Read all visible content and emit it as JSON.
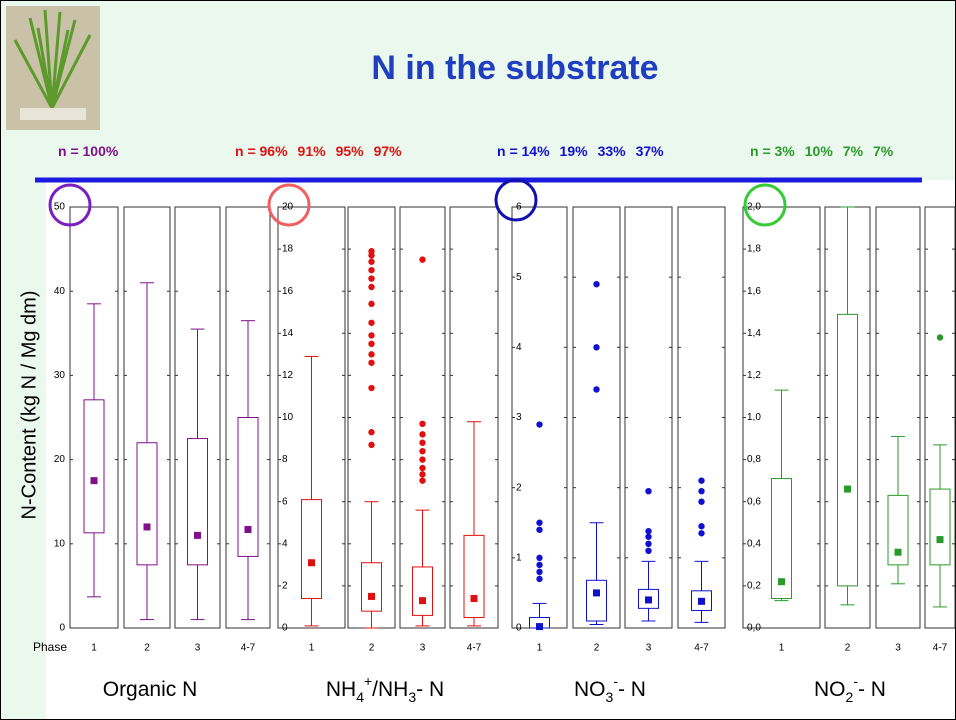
{
  "title": "N in the substrate",
  "y_axis_label": "N-Content (kg N / Mg dm)",
  "phase_label": "Phase",
  "chart_data": [
    {
      "type": "box",
      "name": [
        {
          "text": "Organic N"
        }
      ],
      "n_labels": [
        "n = 100%"
      ],
      "color": "#80108a",
      "categories": [
        "1",
        "2",
        "3",
        "4-7"
      ],
      "ylim": [
        0,
        50
      ],
      "yticks": [
        0,
        10,
        20,
        30,
        40,
        50
      ],
      "boxes": [
        {
          "min": 3.7,
          "q1": 11.3,
          "q3": 27.1,
          "max": 38.5,
          "mean": 17.5,
          "outliers": []
        },
        {
          "min": 1,
          "q1": 7.5,
          "q3": 22,
          "max": 41,
          "mean": 12,
          "outliers": []
        },
        {
          "min": 1,
          "q1": 7.5,
          "q3": 22.5,
          "max": 35.5,
          "mean": 11,
          "outliers": []
        },
        {
          "min": 1,
          "q1": 8.5,
          "q3": 25,
          "max": 36.5,
          "mean": 11.7,
          "outliers": []
        }
      ]
    },
    {
      "type": "box",
      "name": [
        {
          "text": "NH"
        },
        {
          "text": "4",
          "sub": true
        },
        {
          "text": "+",
          "sup": true
        },
        {
          "text": "/NH"
        },
        {
          "text": "3",
          "sub": true
        },
        {
          "text": "- N"
        }
      ],
      "n_labels": [
        "n = 96%",
        "91%",
        "95%",
        "97%"
      ],
      "color": "#e01010",
      "categories": [
        "1",
        "2",
        "3",
        "4-7"
      ],
      "ylim": [
        0,
        20
      ],
      "yticks": [
        0,
        2,
        4,
        6,
        8,
        10,
        12,
        14,
        16,
        18,
        20
      ],
      "boxes": [
        {
          "min": 0.1,
          "q1": 1.4,
          "q3": 6.1,
          "max": 12.9,
          "mean": 3.1,
          "outliers": []
        },
        {
          "min": 0,
          "q1": 0.8,
          "q3": 3.1,
          "max": 6,
          "mean": 1.5,
          "outliers": [
            17.9,
            17.7,
            17.4,
            17.0,
            16.6,
            16.2,
            15.4,
            14.5,
            13.9,
            13.5,
            13.0,
            12.6,
            11.4,
            9.3,
            8.7
          ]
        },
        {
          "min": 0.1,
          "q1": 0.6,
          "q3": 2.9,
          "max": 5.6,
          "mean": 1.3,
          "outliers": [
            17.5,
            9.7,
            9.2,
            8.8,
            8.4,
            8.0,
            7.6,
            7.3,
            7.0
          ]
        },
        {
          "min": 0.1,
          "q1": 0.5,
          "q3": 4.4,
          "max": 9.8,
          "mean": 1.4,
          "outliers": []
        }
      ]
    },
    {
      "type": "box",
      "name": [
        {
          "text": "NO"
        },
        {
          "text": "3",
          "sub": true
        },
        {
          "text": "-",
          "sup": true
        },
        {
          "text": "- N"
        }
      ],
      "n_labels": [
        "n = 14%",
        "19%",
        "33%",
        "37%"
      ],
      "color": "#1010d0",
      "categories": [
        "1",
        "2",
        "3",
        "4-7"
      ],
      "ylim": [
        0,
        6
      ],
      "yticks": [
        0,
        1,
        2,
        3,
        4,
        5,
        6
      ],
      "boxes": [
        {
          "min": 0,
          "q1": 0,
          "q3": 0.15,
          "max": 0.35,
          "mean": 0.02,
          "outliers": [
            2.9,
            1.5,
            1.4,
            1.0,
            0.9,
            0.8,
            0.7
          ]
        },
        {
          "min": 0.05,
          "q1": 0.1,
          "q3": 0.68,
          "max": 1.5,
          "mean": 0.5,
          "outliers": [
            4.9,
            4.0,
            3.4
          ]
        },
        {
          "min": 0.1,
          "q1": 0.28,
          "q3": 0.55,
          "max": 0.95,
          "mean": 0.4,
          "outliers": [
            1.95,
            1.38,
            1.3,
            1.2,
            1.1
          ]
        },
        {
          "min": 0.08,
          "q1": 0.25,
          "q3": 0.53,
          "max": 0.95,
          "mean": 0.38,
          "outliers": [
            2.1,
            1.95,
            1.8,
            1.45,
            1.35
          ]
        }
      ]
    },
    {
      "type": "box",
      "name": [
        {
          "text": "NO"
        },
        {
          "text": "2",
          "sub": true
        },
        {
          "text": "-",
          "sup": true
        },
        {
          "text": "- N"
        }
      ],
      "n_labels": [
        "n = 3%",
        "10%",
        "7%",
        "7%"
      ],
      "color": "#2a9a2a",
      "categories": [
        "1",
        "2",
        "3",
        "4-7"
      ],
      "ylim": [
        0,
        2
      ],
      "yticks": [
        {
          "value": 0,
          "label": "0,0"
        },
        {
          "value": 0.2,
          "label": "0,2"
        },
        {
          "value": 0.4,
          "label": "0,4"
        },
        {
          "value": 0.6,
          "label": "0,6"
        },
        {
          "value": 0.8,
          "label": "0,8"
        },
        {
          "value": 1.0,
          "label": "1,0"
        },
        {
          "value": 1.2,
          "label": "1,2"
        },
        {
          "value": 1.4,
          "label": "1,4"
        },
        {
          "value": 1.6,
          "label": "1,6"
        },
        {
          "value": 1.8,
          "label": "1,8"
        },
        {
          "value": 2.0,
          "label": "2,0"
        }
      ],
      "boxes": [
        {
          "min": 0.13,
          "q1": 0.14,
          "q3": 0.71,
          "max": 1.13,
          "mean": 0.22,
          "outliers": []
        },
        {
          "min": 0.11,
          "q1": 0.2,
          "q3": 1.49,
          "max": 2.0,
          "mean": 0.66,
          "outliers": []
        },
        {
          "min": 0.21,
          "q1": 0.3,
          "q3": 0.63,
          "max": 0.91,
          "mean": 0.36,
          "outliers": []
        },
        {
          "min": 0.1,
          "q1": 0.3,
          "q3": 0.66,
          "max": 0.87,
          "mean": 0.42,
          "outliers": [
            1.38
          ]
        }
      ]
    }
  ]
}
